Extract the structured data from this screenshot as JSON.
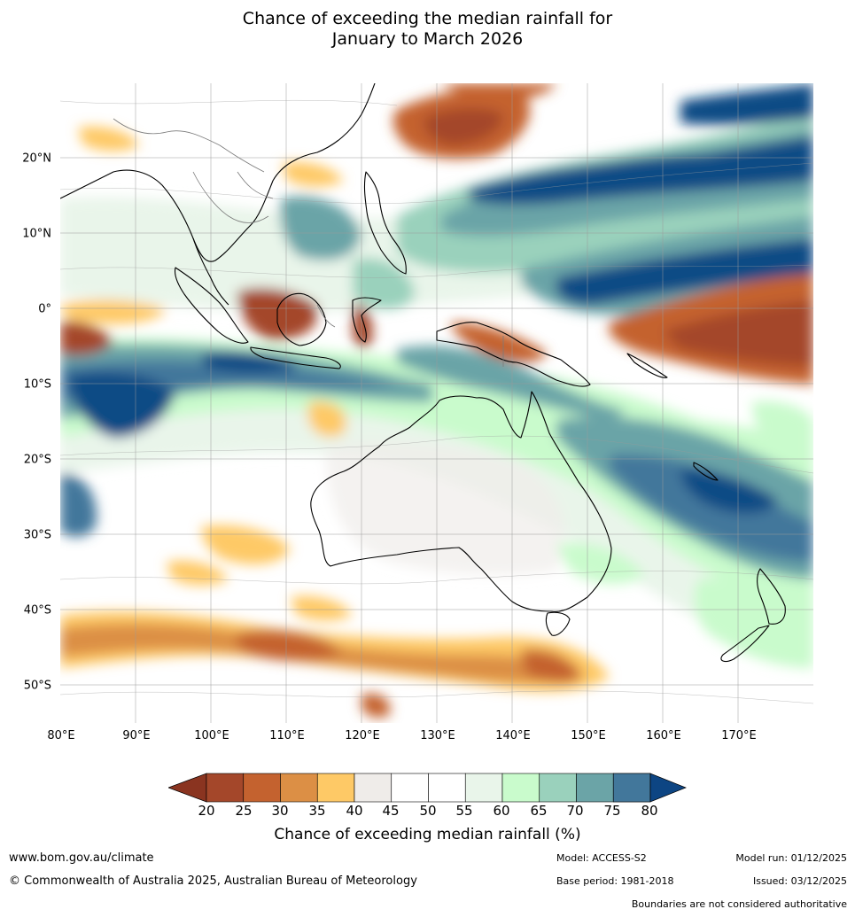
{
  "title": {
    "line1": "Chance of exceeding the median rainfall for",
    "line2": "January to March 2026"
  },
  "map": {
    "region": "Australia, Indonesia, Western Pacific",
    "lat_labels": [
      "20°N",
      "10°N",
      "0°",
      "10°S",
      "20°S",
      "30°S",
      "40°S",
      "50°S"
    ],
    "lon_labels": [
      "80°E",
      "90°E",
      "100°E",
      "110°E",
      "120°E",
      "130°E",
      "140°E",
      "150°E",
      "160°E",
      "170°E"
    ],
    "lat_range": [
      -55,
      30
    ],
    "lon_range": [
      80,
      180
    ],
    "gridlines": true
  },
  "colorbar": {
    "ticks": [
      "20",
      "25",
      "30",
      "35",
      "40",
      "45",
      "50",
      "55",
      "60",
      "65",
      "70",
      "75",
      "80"
    ],
    "colors": [
      "#a4472a",
      "#c4622f",
      "#dc8f45",
      "#fec966",
      "#efece9",
      "#ffffff",
      "#ffffff",
      "#e9f5ea",
      "#c9fbcc",
      "#9ad1bc",
      "#6ba4a7",
      "#42779b",
      "#104b85"
    ],
    "under_color": "#8a3420",
    "over_color": "#0d4583",
    "label": "Chance of exceeding median rainfall (%)"
  },
  "footer": {
    "url": "www.bom.gov.au/climate",
    "copyright": "© Commonwealth of Australia 2025, Australian Bureau of Meteorology",
    "model": "Model: ACCESS-S2",
    "model_run": "Model run: 01/12/2025",
    "base_period": "Base period: 1981-2018",
    "issued": "Issued: 03/12/2025",
    "disclaimer": "Boundaries are not considered authoritative"
  }
}
